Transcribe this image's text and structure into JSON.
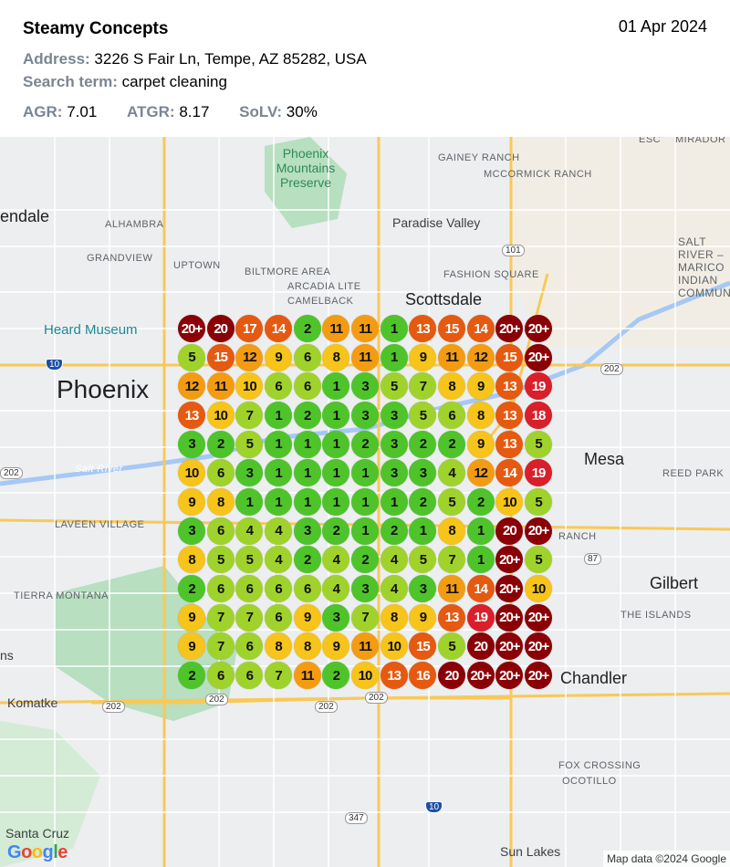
{
  "report": {
    "business_name": "Steamy Concepts",
    "date": "01 Apr 2024",
    "address_label": "Address:",
    "address": "3226 S Fair Ln, Tempe, AZ 85282, USA",
    "search_term_label": "Search term:",
    "search_term": "carpet cleaning",
    "metrics": [
      {
        "label": "AGR:",
        "value": "7.01"
      },
      {
        "label": "ATGR:",
        "value": "8.17"
      },
      {
        "label": "SoLV:",
        "value": "30%"
      }
    ]
  },
  "map": {
    "labels": [
      "endale",
      "ALHAMBRA",
      "GRANDVIEW",
      "UPTOWN",
      "BILTMORE AREA",
      "ARCADIA LITE",
      "CAMELBACK",
      "Phoenix Mountains Preserve",
      "Paradise Valley",
      "FASHION SQUARE",
      "Scottsdale",
      "GAINEY RANCH",
      "MCCORMICK RANCH",
      "MIRADOR",
      "SALT RIVER –MARICO INDIAN COMMUN",
      "Heard Museum",
      "Phoenix",
      "Salt River",
      "Mesa",
      "REED PARK",
      "LAVEEN VILLAGE",
      "RANCH",
      "Gilbert",
      "TIERRA MONTANA",
      "THE ISLANDS",
      "ns",
      "Chandler",
      "Komatke",
      "FOX CROSSING",
      "OCOTILLO",
      "Santa Cruz",
      "Sun Lakes",
      "ESC"
    ],
    "shields": [
      "10",
      "101",
      "202",
      "202",
      "202",
      "202",
      "202",
      "87",
      "347",
      "10",
      "202"
    ],
    "attribution": "Map data ©2024 Google",
    "logo": "Google"
  },
  "rank_colors": {
    "top3": "#4ec42a",
    "4to7": "#a0d22c",
    "8to10": "#f6c41a",
    "11to12": "#f39c12",
    "13to17": "#e55a10",
    "18to19": "#d81f2a",
    "20plus": "#8a0006"
  },
  "grid": [
    [
      "20+",
      "20",
      "17",
      "14",
      "2",
      "11",
      "11",
      "1",
      "13",
      "15",
      "14",
      "20+",
      "20+"
    ],
    [
      "5",
      "15",
      "12",
      "9",
      "6",
      "8",
      "11",
      "1",
      "9",
      "11",
      "12",
      "15",
      "20+"
    ],
    [
      "12",
      "11",
      "10",
      "6",
      "6",
      "1",
      "3",
      "5",
      "7",
      "8",
      "9",
      "13",
      "19"
    ],
    [
      "13",
      "10",
      "7",
      "1",
      "2",
      "1",
      "3",
      "3",
      "5",
      "6",
      "8",
      "13",
      "18"
    ],
    [
      "3",
      "2",
      "5",
      "1",
      "1",
      "1",
      "2",
      "3",
      "2",
      "2",
      "9",
      "13",
      "5"
    ],
    [
      "10",
      "6",
      "3",
      "1",
      "1",
      "1",
      "1",
      "3",
      "3",
      "4",
      "12",
      "14",
      "19"
    ],
    [
      "9",
      "8",
      "1",
      "1",
      "1",
      "1",
      "1",
      "1",
      "2",
      "5",
      "2",
      "10",
      "5"
    ],
    [
      "3",
      "6",
      "4",
      "4",
      "3",
      "2",
      "1",
      "2",
      "1",
      "8",
      "1",
      "20",
      "20+"
    ],
    [
      "8",
      "5",
      "5",
      "4",
      "2",
      "4",
      "2",
      "4",
      "5",
      "7",
      "1",
      "20+",
      "5"
    ],
    [
      "2",
      "6",
      "6",
      "6",
      "6",
      "4",
      "3",
      "4",
      "3",
      "11",
      "14",
      "20+",
      "10"
    ],
    [
      "9",
      "7",
      "7",
      "6",
      "9",
      "3",
      "7",
      "8",
      "9",
      "13",
      "19",
      "20+",
      "20+"
    ],
    [
      "9",
      "7",
      "6",
      "8",
      "8",
      "9",
      "11",
      "10",
      "15",
      "5",
      "20",
      "20+",
      "20+"
    ],
    [
      "2",
      "6",
      "6",
      "7",
      "11",
      "2",
      "10",
      "13",
      "16",
      "20",
      "20+",
      "20+",
      "20+"
    ]
  ]
}
